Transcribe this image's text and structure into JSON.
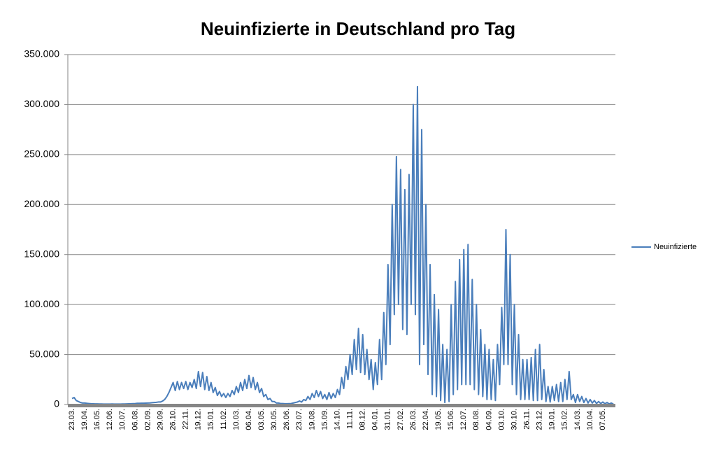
{
  "chart_data": {
    "type": "line",
    "title": "Neuinfizierte in Deutschland pro Tag",
    "categories": [
      "23.03.",
      null,
      null,
      null,
      null,
      null,
      "19.04.",
      null,
      null,
      null,
      null,
      null,
      "16.05.",
      null,
      null,
      null,
      null,
      null,
      "12.06.",
      null,
      null,
      null,
      null,
      null,
      "10.07.",
      null,
      null,
      null,
      null,
      null,
      "06.08.",
      null,
      null,
      null,
      null,
      null,
      "02.09.",
      null,
      null,
      null,
      null,
      null,
      "29.09.",
      null,
      null,
      null,
      null,
      null,
      "26.10.",
      null,
      null,
      null,
      null,
      null,
      "22.11.",
      null,
      null,
      null,
      null,
      null,
      "19.12.",
      null,
      null,
      null,
      null,
      null,
      "15.01.",
      null,
      null,
      null,
      null,
      null,
      "11.02.",
      null,
      null,
      null,
      null,
      null,
      "10.03.",
      null,
      null,
      null,
      null,
      null,
      "06.04.",
      null,
      null,
      null,
      null,
      null,
      "03.05.",
      null,
      null,
      null,
      null,
      null,
      "30.05.",
      null,
      null,
      null,
      null,
      null,
      "26.06.",
      null,
      null,
      null,
      null,
      null,
      "23.07.",
      null,
      null,
      null,
      null,
      null,
      "19.08.",
      null,
      null,
      null,
      null,
      null,
      "15.09.",
      null,
      null,
      null,
      null,
      null,
      "14.10.",
      null,
      null,
      null,
      null,
      null,
      "11.11.",
      null,
      null,
      null,
      null,
      null,
      "08.12.",
      null,
      null,
      null,
      null,
      null,
      "04.01.",
      null,
      null,
      null,
      null,
      null,
      "31.01.",
      null,
      null,
      null,
      null,
      null,
      "27.02.",
      null,
      null,
      null,
      null,
      null,
      "26.03.",
      null,
      null,
      null,
      null,
      null,
      "22.04.",
      null,
      null,
      null,
      null,
      null,
      "19.05.",
      null,
      null,
      null,
      null,
      null,
      "15.06.",
      null,
      null,
      null,
      null,
      null,
      "12.07.",
      null,
      null,
      null,
      null,
      null,
      "08.08.",
      null,
      null,
      null,
      null,
      null,
      "04.09.",
      null,
      null,
      null,
      null,
      null,
      "03.10.",
      null,
      null,
      null,
      null,
      null,
      "30.10.",
      null,
      null,
      null,
      null,
      null,
      "26.11.",
      null,
      null,
      null,
      null,
      null,
      "23.12.",
      null,
      null,
      null,
      null,
      null,
      "19.01.",
      null,
      null,
      null,
      null,
      null,
      "15.02.",
      null,
      null,
      null,
      null,
      null,
      "14.03.",
      null,
      null,
      null,
      null,
      null,
      "10.04.",
      null,
      null,
      null,
      null,
      null,
      "07.05.",
      null,
      null,
      null,
      null,
      null
    ],
    "series": [
      {
        "name": "Neuinfizierte",
        "color": "#4a7ebb",
        "values": [
          6000,
          7000,
          4000,
          3000,
          2000,
          1500,
          1500,
          1200,
          1000,
          800,
          700,
          600,
          600,
          500,
          500,
          400,
          400,
          400,
          400,
          500,
          400,
          400,
          400,
          400,
          500,
          500,
          600,
          700,
          800,
          900,
          1000,
          1200,
          1200,
          1300,
          1300,
          1400,
          1500,
          1600,
          1800,
          2000,
          2200,
          2500,
          2500,
          3500,
          5000,
          8000,
          12000,
          17000,
          22000,
          14000,
          23000,
          15000,
          22000,
          16000,
          23000,
          15000,
          22000,
          17000,
          25000,
          16000,
          33000,
          18000,
          32000,
          15000,
          28000,
          14000,
          22000,
          12000,
          17000,
          9000,
          13000,
          8000,
          11000,
          7000,
          11000,
          8000,
          14000,
          10000,
          18000,
          12000,
          22000,
          14000,
          25000,
          16000,
          29000,
          17000,
          27000,
          15000,
          22000,
          12000,
          16000,
          8000,
          10000,
          5000,
          6000,
          3000,
          3000,
          1500,
          1500,
          1000,
          1000,
          800,
          800,
          900,
          1000,
          1500,
          2000,
          2500,
          3500,
          2500,
          5000,
          4000,
          8000,
          5000,
          11000,
          7000,
          14000,
          8000,
          13000,
          6000,
          10000,
          5000,
          12000,
          6000,
          11000,
          7000,
          15000,
          10000,
          27000,
          16000,
          38000,
          25000,
          50000,
          30000,
          65000,
          35000,
          76000,
          32000,
          70000,
          30000,
          55000,
          25000,
          45000,
          15000,
          42000,
          20000,
          65000,
          25000,
          92000,
          40000,
          140000,
          60000,
          200000,
          90000,
          248000,
          100000,
          235000,
          75000,
          215000,
          70000,
          230000,
          100000,
          300000,
          90000,
          318000,
          40000,
          275000,
          60000,
          200000,
          30000,
          140000,
          10000,
          110000,
          8000,
          95000,
          4000,
          60000,
          2000,
          55000,
          3000,
          100000,
          10000,
          123000,
          15000,
          145000,
          20000,
          155000,
          20000,
          160000,
          20000,
          125000,
          15000,
          100000,
          10000,
          75000,
          8000,
          60000,
          5000,
          55000,
          5000,
          45000,
          4000,
          60000,
          20000,
          97000,
          40000,
          175000,
          40000,
          150000,
          20000,
          100000,
          10000,
          70000,
          5000,
          45000,
          5000,
          45000,
          5000,
          47000,
          4000,
          55000,
          4000,
          60000,
          5000,
          35000,
          3000,
          18000,
          2500,
          18000,
          4000,
          20000,
          3000,
          22000,
          3000,
          25000,
          5000,
          33000,
          5000,
          10000,
          2000,
          10000,
          3000,
          8000,
          2000,
          6000,
          1500,
          5000,
          1500,
          4000,
          1000,
          3000,
          1000,
          2500,
          800,
          2000,
          600,
          1500,
          500
        ]
      }
    ],
    "ylim": [
      0,
      350000
    ],
    "yticks": [
      0,
      {
        "value": 50000,
        "label": "50.000"
      },
      {
        "value": 100000,
        "label": "100.000"
      },
      {
        "value": 150000,
        "label": "150.000"
      },
      {
        "value": 200000,
        "label": "200.000"
      },
      {
        "value": 250000,
        "label": "250.000"
      },
      {
        "value": 300000,
        "label": "300.000"
      },
      {
        "value": 350000,
        "label": "350.000"
      }
    ],
    "grid": true,
    "legend": "right"
  }
}
